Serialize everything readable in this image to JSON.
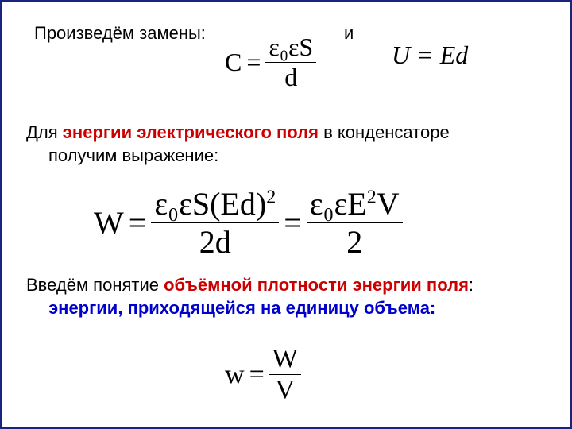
{
  "colors": {
    "border": "#1a237e",
    "text": "#000000",
    "red": "#cc0000",
    "blue": "#0000cc",
    "background": "#ffffff"
  },
  "typography": {
    "body_font": "Arial",
    "formula_font": "Times New Roman",
    "body_size_pt": 22,
    "formula_large_pt": 40,
    "formula_medium_pt": 32
  },
  "text": {
    "line1": "Произведём замены:",
    "and": "и",
    "para2_a": "Для ",
    "para2_b": "энергии электрического поля",
    "para2_c": " в конденсаторе",
    "para2_d": "получим выражение:",
    "para3_a": "Введём понятие ",
    "para3_b": "объёмной плотности энергии поля",
    "para3_c": ": ",
    "para3_d": "энергии, приходящейся на единицу объема:"
  },
  "formulas": {
    "C": {
      "lhs": "C",
      "eq": "=",
      "num": "ε₀εS",
      "den": "d"
    },
    "U": {
      "expr": "U = Ed"
    },
    "W": {
      "lhs": "W",
      "eq1": "=",
      "num1": "ε₀εS(Ed)",
      "num1_sup": "2",
      "den1": "2d",
      "eq2": "=",
      "num2": "ε₀εE",
      "num2_sup": "2",
      "num2_tail": "V",
      "den2": "2"
    },
    "w_small": {
      "lhs": "w",
      "eq": "=",
      "num": "W",
      "den": "V"
    }
  }
}
